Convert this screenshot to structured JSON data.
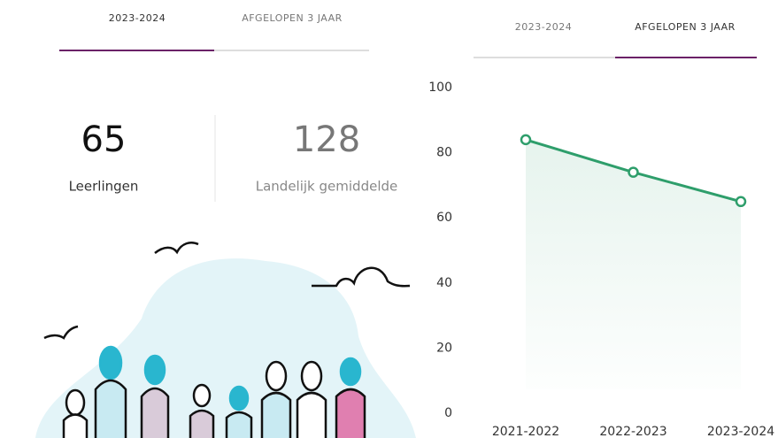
{
  "left": {
    "tabs": [
      "2023-2024",
      "AFGELOPEN 3 JAAR"
    ],
    "stats": [
      {
        "value": "65",
        "label": "Leerlingen"
      },
      {
        "value": "128",
        "label": "Landelijk gemiddelde"
      }
    ]
  },
  "right": {
    "tabs": [
      "2023-2024",
      "AFGELOPEN 3 JAAR"
    ]
  },
  "chart_data": {
    "type": "line",
    "categories": [
      "2021-2022",
      "2022-2023",
      "2023-2024"
    ],
    "values": [
      84,
      74,
      65
    ],
    "color": "#2e9e6b",
    "ylim": [
      0,
      100
    ],
    "yticks": [
      0,
      20,
      40,
      60,
      80,
      100
    ]
  }
}
